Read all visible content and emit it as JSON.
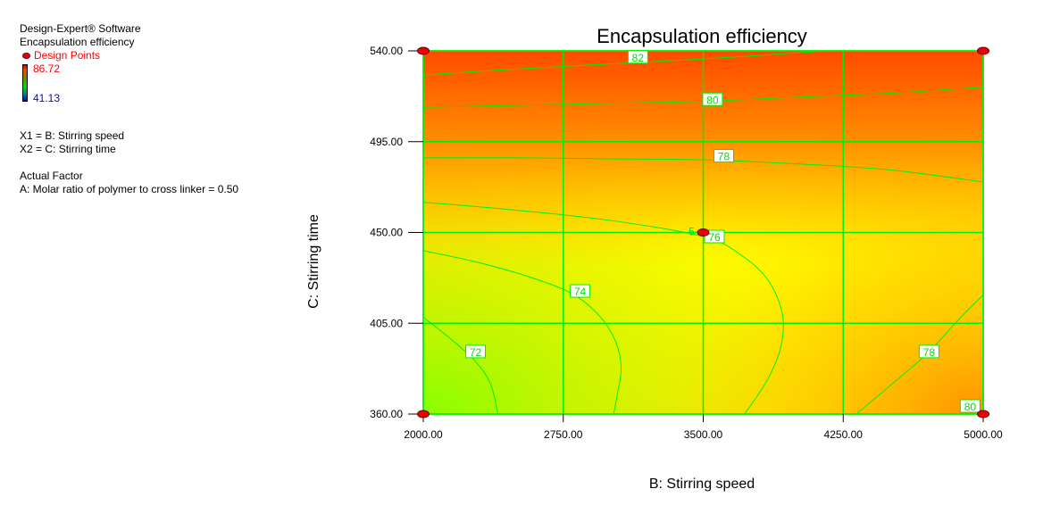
{
  "legend": {
    "software": "Design-Expert® Software",
    "response": "Encapsulation efficiency",
    "design_points_label": "Design Points",
    "scale_max": "86.72",
    "scale_min": "41.13"
  },
  "factors": {
    "x1": "X1 = B: Stirring speed",
    "x2": "X2 = C: Stirring time"
  },
  "actual_factor": {
    "heading": "Actual Factor",
    "value": "A: Molar ratio of polymer to cross linker = 0.50"
  },
  "colors": {
    "contour_line": "#00ee00",
    "design_point": "#ee0000",
    "high": "#ff4a00",
    "mid": "#ffff00",
    "low": "#90ff00"
  },
  "chart_data": {
    "type": "contour",
    "title": "Encapsulation efficiency",
    "xlabel": "B: Stirring speed",
    "ylabel": "C: Stirring time",
    "xlim": [
      2000,
      5000
    ],
    "ylim": [
      360,
      540
    ],
    "grid": true,
    "x_ticks": [
      "2000.00",
      "2750.00",
      "3500.00",
      "4250.00",
      "5000.00"
    ],
    "y_ticks": [
      "360.00",
      "405.00",
      "450.00",
      "495.00",
      "540.00"
    ],
    "contours": [
      {
        "level": 72,
        "label": "72",
        "label_at": [
          2280,
          391
        ],
        "points": [
          [
            2000,
            408
          ],
          [
            2150,
            397
          ],
          [
            2280,
            386
          ],
          [
            2360,
            375
          ],
          [
            2400,
            360
          ]
        ]
      },
      {
        "level": 74,
        "label": "74",
        "label_at": [
          2840,
          421
        ],
        "points": [
          [
            2000,
            441
          ],
          [
            2300,
            435
          ],
          [
            2600,
            427
          ],
          [
            2810,
            419
          ],
          [
            2950,
            408
          ],
          [
            3030,
            396
          ],
          [
            3060,
            383
          ],
          [
            3040,
            370
          ],
          [
            3020,
            360
          ]
        ]
      },
      {
        "level": 76,
        "label": "76",
        "label_at": [
          3560,
          448
        ],
        "points": [
          [
            2000,
            465
          ],
          [
            2500,
            461
          ],
          [
            3000,
            456
          ],
          [
            3500,
            448
          ],
          [
            3700,
            439
          ],
          [
            3850,
            426
          ],
          [
            3925,
            409
          ],
          [
            3915,
            393
          ],
          [
            3850,
            378
          ],
          [
            3760,
            365
          ],
          [
            3720,
            360
          ]
        ]
      },
      {
        "level": 78,
        "label": "78",
        "label_at": [
          3610,
          488
        ],
        "points": [
          [
            2000,
            487
          ],
          [
            2500,
            487
          ],
          [
            3000,
            486.5
          ],
          [
            3500,
            486
          ],
          [
            4000,
            484
          ],
          [
            4500,
            481
          ],
          [
            5000,
            475
          ]
        ]
      },
      {
        "level": 78,
        "label": "78",
        "label_at": [
          4710,
          391
        ],
        "points": [
          [
            4320,
            360
          ],
          [
            4500,
            374
          ],
          [
            4700,
            390
          ],
          [
            4870,
            407
          ],
          [
            5000,
            419
          ]
        ]
      },
      {
        "level": 80,
        "label": "80",
        "label_at": [
          3550,
          516
        ],
        "points": [
          [
            2000,
            512
          ],
          [
            2500,
            513
          ],
          [
            3000,
            514
          ],
          [
            3500,
            515
          ],
          [
            4000,
            517
          ],
          [
            4500,
            519
          ],
          [
            5000,
            522
          ]
        ]
      },
      {
        "level": 80,
        "label": "80",
        "label_at": [
          4930,
          364
        ],
        "points": []
      },
      {
        "level": 82,
        "label": "82",
        "label_at": [
          3150,
          537
        ],
        "points": [
          [
            2000,
            528
          ],
          [
            2500,
            531
          ],
          [
            3000,
            533.5
          ],
          [
            3500,
            536
          ],
          [
            4000,
            539
          ],
          [
            4150,
            540
          ]
        ]
      }
    ],
    "design_points": [
      {
        "x": 2000,
        "y": 540
      },
      {
        "x": 5000,
        "y": 540
      },
      {
        "x": 3500,
        "y": 450,
        "replicates": "5"
      },
      {
        "x": 2000,
        "y": 360
      },
      {
        "x": 5000,
        "y": 360
      }
    ]
  }
}
